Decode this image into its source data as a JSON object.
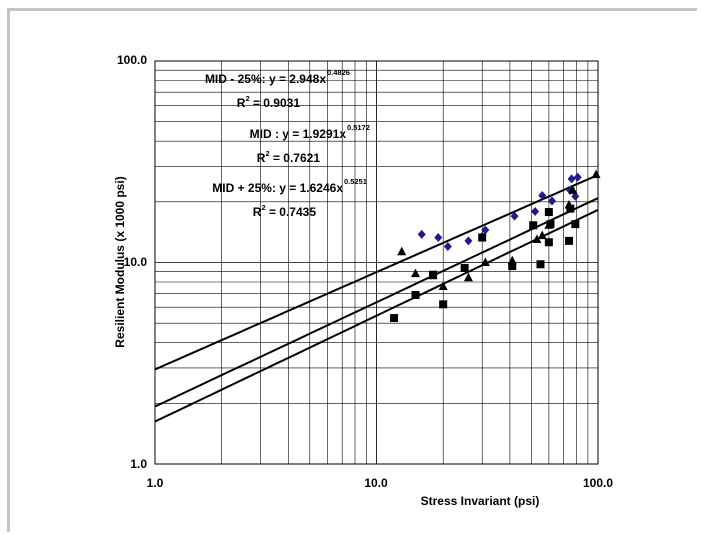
{
  "chart_data": {
    "type": "scatter",
    "xlabel": "Stress Invariant (psi)",
    "ylabel": "Resilient Modulus (x 1000 psi)",
    "x_scale": "log",
    "y_scale": "log",
    "xlim": [
      1,
      100
    ],
    "ylim": [
      1,
      100
    ],
    "x_ticks": [
      "1.0",
      "10.0",
      "100.0"
    ],
    "y_ticks": [
      "1.0",
      "10.0",
      "100.0"
    ],
    "grid": true,
    "series": [
      {
        "marker": "diamond",
        "color": "#1c1c8c",
        "points": [
          {
            "x": 16,
            "y": 13.8
          },
          {
            "x": 19,
            "y": 13.3
          },
          {
            "x": 21,
            "y": 12.0
          },
          {
            "x": 26,
            "y": 12.8
          },
          {
            "x": 30,
            "y": 13.5
          },
          {
            "x": 31,
            "y": 14.5
          },
          {
            "x": 42,
            "y": 17.0
          },
          {
            "x": 52,
            "y": 17.9
          },
          {
            "x": 56,
            "y": 21.5
          },
          {
            "x": 62,
            "y": 20.2
          },
          {
            "x": 75,
            "y": 22.8
          },
          {
            "x": 76,
            "y": 26.0
          },
          {
            "x": 81,
            "y": 26.5
          },
          {
            "x": 79,
            "y": 21.3
          }
        ]
      },
      {
        "marker": "triangle",
        "color": "#000000",
        "points": [
          {
            "x": 13,
            "y": 11.3
          },
          {
            "x": 15,
            "y": 8.8
          },
          {
            "x": 18,
            "y": 8.6
          },
          {
            "x": 20,
            "y": 7.6
          },
          {
            "x": 26,
            "y": 8.4
          },
          {
            "x": 31,
            "y": 10.0
          },
          {
            "x": 41,
            "y": 10.2
          },
          {
            "x": 53,
            "y": 13.0
          },
          {
            "x": 56,
            "y": 13.6
          },
          {
            "x": 60,
            "y": 15.3
          },
          {
            "x": 74,
            "y": 19.3
          },
          {
            "x": 77,
            "y": 22.8
          },
          {
            "x": 98,
            "y": 27.3
          }
        ]
      },
      {
        "marker": "square",
        "color": "#000000",
        "points": [
          {
            "x": 12,
            "y": 5.3
          },
          {
            "x": 15,
            "y": 6.9
          },
          {
            "x": 18,
            "y": 8.7
          },
          {
            "x": 20,
            "y": 6.2
          },
          {
            "x": 25,
            "y": 9.4
          },
          {
            "x": 30,
            "y": 13.3
          },
          {
            "x": 41,
            "y": 9.6
          },
          {
            "x": 51,
            "y": 15.3
          },
          {
            "x": 55,
            "y": 9.8
          },
          {
            "x": 60,
            "y": 12.6
          },
          {
            "x": 60,
            "y": 17.8
          },
          {
            "x": 61,
            "y": 15.5
          },
          {
            "x": 74,
            "y": 12.8
          },
          {
            "x": 75,
            "y": 18.5
          },
          {
            "x": 79,
            "y": 15.5
          }
        ]
      }
    ],
    "trendlines": [
      {
        "type": "power",
        "a": 2.948,
        "b": 0.4826
      },
      {
        "type": "power",
        "a": 1.9291,
        "b": 0.5172
      },
      {
        "type": "power",
        "a": 1.6246,
        "b": 0.5251
      }
    ],
    "annotations": [
      {
        "prefix": "MID - 25%: y = 2.948x",
        "exponent": "0.4826",
        "r2_label": "R",
        "r2_sup": "2",
        "r2_value": " = 0.9031"
      },
      {
        "prefix": "MID : y = 1.9291x",
        "exponent": "0.5172",
        "r2_label": "R",
        "r2_sup": "2",
        "r2_value": " = 0.7621"
      },
      {
        "prefix": "MID + 25%: y = 1.6246x",
        "exponent": "0.5251",
        "r2_label": "R",
        "r2_sup": "2",
        "r2_value": " = 0.7435"
      }
    ]
  }
}
